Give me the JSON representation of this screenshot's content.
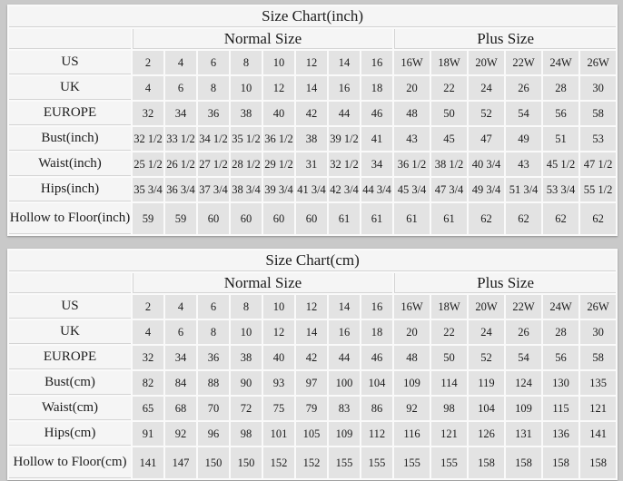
{
  "page": {
    "background": "#c9c9c9"
  },
  "colors": {
    "page_bg": "#c9c9c9",
    "label_bg": "#f5f5f5",
    "cell_bg": "#e3e3e3",
    "gap": "#fafafa",
    "rule": "#d4d4d4",
    "text": "#1c1c1c"
  },
  "chart_data": [
    {
      "type": "table",
      "title": "Size Chart(inch)",
      "column_groups": [
        {
          "label": "Normal Size",
          "span": 8
        },
        {
          "label": "Plus Size",
          "span": 6
        }
      ],
      "rows": [
        {
          "label": "US",
          "values": [
            "2",
            "4",
            "6",
            "8",
            "10",
            "12",
            "14",
            "16",
            "16W",
            "18W",
            "20W",
            "22W",
            "24W",
            "26W"
          ]
        },
        {
          "label": "UK",
          "values": [
            "4",
            "6",
            "8",
            "10",
            "12",
            "14",
            "16",
            "18",
            "20",
            "22",
            "24",
            "26",
            "28",
            "30"
          ]
        },
        {
          "label": "EUROPE",
          "values": [
            "32",
            "34",
            "36",
            "38",
            "40",
            "42",
            "44",
            "46",
            "48",
            "50",
            "52",
            "54",
            "56",
            "58"
          ]
        },
        {
          "label": "Bust(inch)",
          "values": [
            "32 1/2",
            "33 1/2",
            "34 1/2",
            "35 1/2",
            "36 1/2",
            "38",
            "39 1/2",
            "41",
            "43",
            "45",
            "47",
            "49",
            "51",
            "53"
          ]
        },
        {
          "label": "Waist(inch)",
          "values": [
            "25 1/2",
            "26 1/2",
            "27 1/2",
            "28 1/2",
            "29 1/2",
            "31",
            "32 1/2",
            "34",
            "36 1/2",
            "38 1/2",
            "40 3/4",
            "43",
            "45 1/2",
            "47 1/2"
          ]
        },
        {
          "label": "Hips(inch)",
          "values": [
            "35 3/4",
            "36 3/4",
            "37 3/4",
            "38 3/4",
            "39 3/4",
            "41 3/4",
            "42 3/4",
            "44 3/4",
            "45 3/4",
            "47 3/4",
            "49 3/4",
            "51 3/4",
            "53 3/4",
            "55 1/2"
          ]
        },
        {
          "label": "Hollow to Floor(inch)",
          "values": [
            "59",
            "59",
            "60",
            "60",
            "60",
            "60",
            "61",
            "61",
            "61",
            "61",
            "62",
            "62",
            "62",
            "62"
          ]
        }
      ]
    },
    {
      "type": "table",
      "title": "Size Chart(cm)",
      "column_groups": [
        {
          "label": "Normal Size",
          "span": 8
        },
        {
          "label": "Plus Size",
          "span": 6
        }
      ],
      "rows": [
        {
          "label": "US",
          "values": [
            "2",
            "4",
            "6",
            "8",
            "10",
            "12",
            "14",
            "16",
            "16W",
            "18W",
            "20W",
            "22W",
            "24W",
            "26W"
          ]
        },
        {
          "label": "UK",
          "values": [
            "4",
            "6",
            "8",
            "10",
            "12",
            "14",
            "16",
            "18",
            "20",
            "22",
            "24",
            "26",
            "28",
            "30"
          ]
        },
        {
          "label": "EUROPE",
          "values": [
            "32",
            "34",
            "36",
            "38",
            "40",
            "42",
            "44",
            "46",
            "48",
            "50",
            "52",
            "54",
            "56",
            "58"
          ]
        },
        {
          "label": "Bust(cm)",
          "values": [
            "82",
            "84",
            "88",
            "90",
            "93",
            "97",
            "100",
            "104",
            "109",
            "114",
            "119",
            "124",
            "130",
            "135"
          ]
        },
        {
          "label": "Waist(cm)",
          "values": [
            "65",
            "68",
            "70",
            "72",
            "75",
            "79",
            "83",
            "86",
            "92",
            "98",
            "104",
            "109",
            "115",
            "121"
          ]
        },
        {
          "label": "Hips(cm)",
          "values": [
            "91",
            "92",
            "96",
            "98",
            "101",
            "105",
            "109",
            "112",
            "116",
            "121",
            "126",
            "131",
            "136",
            "141"
          ]
        },
        {
          "label": "Hollow to Floor(cm)",
          "values": [
            "141",
            "147",
            "150",
            "150",
            "152",
            "152",
            "155",
            "155",
            "155",
            "155",
            "158",
            "158",
            "158",
            "158"
          ]
        }
      ]
    }
  ]
}
